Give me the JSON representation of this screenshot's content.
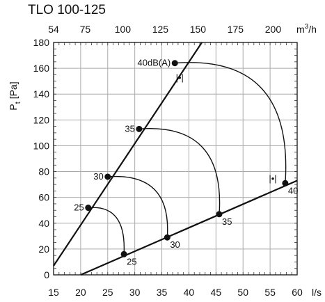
{
  "title": "TLO 100-125",
  "chart_data": {
    "type": "line",
    "title": "TLO 100-125",
    "xlabel": "l/s",
    "x2label": "m3/h",
    "ylabel": "Pt [Pa]",
    "xlim": [
      15,
      60
    ],
    "ylim": [
      0,
      180
    ],
    "x_ticks": [
      15,
      20,
      25,
      30,
      35,
      40,
      45,
      50,
      55,
      60
    ],
    "x2_ticks": [
      54,
      75,
      100,
      125,
      150,
      175,
      200
    ],
    "y_ticks": [
      0,
      20,
      40,
      60,
      80,
      100,
      120,
      140,
      160,
      180
    ],
    "grid": true,
    "lines": [
      {
        "points": [
          [
            15.0,
            7
          ],
          [
            42.4,
            180
          ]
        ]
      },
      {
        "points": [
          [
            20.0,
            0
          ],
          [
            60.0,
            73
          ]
        ]
      }
    ],
    "series": [
      {
        "label": "25",
        "points": [
          [
            21.4,
            52
          ],
          [
            28.0,
            16
          ]
        ],
        "label_positions": [
          "left",
          "right"
        ]
      },
      {
        "label": "30",
        "points": [
          [
            25.0,
            76
          ],
          [
            36.0,
            29
          ]
        ],
        "label_positions": [
          "left",
          "right"
        ]
      },
      {
        "label": "35",
        "points": [
          [
            30.8,
            113
          ],
          [
            45.6,
            47
          ]
        ],
        "label_positions": [
          "left",
          "right"
        ]
      },
      {
        "label": "40",
        "points": [
          [
            37.4,
            164
          ],
          [
            57.8,
            71
          ]
        ],
        "label_positions": [
          "left",
          "right"
        ],
        "start_label": "40dB(A)"
      }
    ],
    "markers": [
      {
        "x": 38.3,
        "y": 153,
        "glyph": "|•|"
      },
      {
        "x": 55.5,
        "y": 75,
        "glyph": "|•|"
      }
    ]
  }
}
